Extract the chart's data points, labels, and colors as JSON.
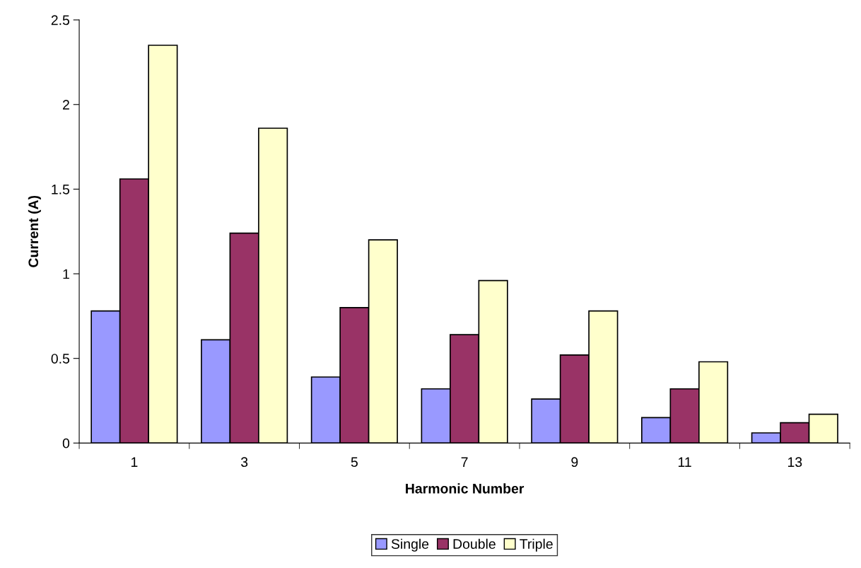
{
  "chart_data": {
    "type": "bar",
    "xlabel": "Harmonic Number",
    "ylabel": "Current (A)",
    "categories": [
      "1",
      "3",
      "5",
      "7",
      "9",
      "11",
      "13"
    ],
    "series": [
      {
        "name": "Single",
        "color": "#9999ff",
        "values": [
          0.78,
          0.61,
          0.39,
          0.32,
          0.26,
          0.15,
          0.06
        ]
      },
      {
        "name": "Double",
        "color": "#993366",
        "values": [
          1.56,
          1.24,
          0.8,
          0.64,
          0.52,
          0.32,
          0.12
        ]
      },
      {
        "name": "Triple",
        "color": "#ffffcc",
        "values": [
          2.35,
          1.86,
          1.2,
          0.96,
          0.78,
          0.48,
          0.17
        ]
      }
    ],
    "ylim": [
      0,
      2.5
    ],
    "yticks": [
      0,
      0.5,
      1,
      1.5,
      2,
      2.5
    ],
    "grid": false,
    "legend": "bottom"
  }
}
